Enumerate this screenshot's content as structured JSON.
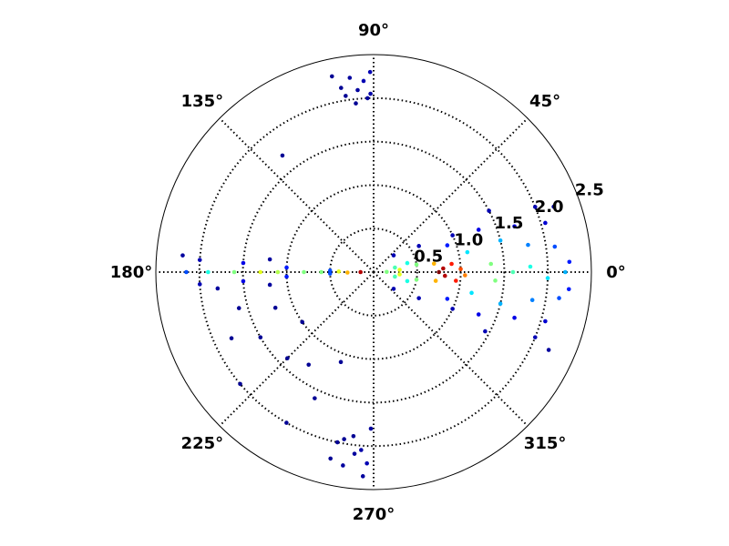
{
  "chart_data": {
    "type": "polar-scatter",
    "colormap": "jet",
    "rlim": [
      0,
      2.5
    ],
    "rticks": [
      0.5,
      {
        "value": 1,
        "label": "1.0"
      },
      1.5,
      {
        "value": 2,
        "label": "2.0"
      },
      2.5
    ],
    "thetaticks": [
      {
        "value": 0,
        "label": "0°"
      },
      {
        "value": 45,
        "label": "45°"
      },
      {
        "value": 90,
        "label": "90°"
      },
      {
        "value": 135,
        "label": "135°"
      },
      {
        "value": 180,
        "label": "180°"
      },
      {
        "value": 225,
        "label": "225°"
      },
      {
        "value": 270,
        "label": "270°"
      },
      {
        "value": 315,
        "label": "315°"
      }
    ],
    "grid": true,
    "theta": [
      30,
      -30,
      40,
      -40,
      25,
      -25,
      20,
      -20,
      22,
      -22,
      28,
      -28,
      18,
      -18,
      16,
      -16,
      22,
      -22,
      20,
      -24,
      15,
      -15,
      14,
      -14,
      12,
      -12,
      10,
      -10,
      8,
      -8,
      12,
      -12,
      10,
      -10,
      3,
      -5,
      0,
      2,
      -2,
      4,
      -4,
      0,
      5,
      -5,
      1,
      8,
      -8,
      6,
      -6,
      2,
      -2,
      3,
      -3,
      0,
      187,
      173,
      186,
      175,
      184,
      176,
      184,
      176,
      183,
      177,
      182,
      178,
      180,
      180,
      180,
      180,
      180,
      180,
      179,
      181,
      180,
      180,
      91,
      93,
      95,
      97,
      100,
      102,
      92,
      96,
      99,
      91,
      268,
      266,
      264,
      261,
      258,
      263,
      269,
      257,
      267,
      260,
      200,
      210,
      215,
      225,
      235,
      245,
      205,
      220,
      240,
      250,
      195,
      128
    ],
    "r": [
      0.6,
      0.6,
      0.3,
      0.3,
      1.0,
      1.0,
      0.9,
      0.9,
      1.3,
      1.3,
      1.5,
      1.45,
      1.7,
      1.7,
      2.05,
      2.05,
      2.0,
      2.0,
      2.2,
      2.2,
      0.4,
      0.4,
      1.5,
      1.5,
      1.1,
      1.15,
      1.8,
      1.85,
      2.1,
      2.15,
      0.25,
      0.25,
      0.5,
      0.5,
      2.25,
      2.25,
      2.2,
      1.8,
      2.0,
      1.35,
      1.4,
      1.6,
      0.3,
      0.3,
      0.15,
      0.7,
      0.72,
      0.9,
      0.95,
      1.0,
      1.05,
      0.8,
      0.82,
      0.75,
      1.2,
      1.2,
      1.8,
      2.2,
      2.0,
      2.0,
      1.5,
      1.5,
      1.0,
      1.0,
      0.5,
      0.5,
      2.15,
      1.9,
      1.6,
      0.8,
      0.6,
      1.1,
      0.4,
      0.3,
      1.3,
      0.15,
      2.3,
      2.2,
      2.1,
      2.25,
      2.15,
      2.3,
      2.0,
      1.95,
      2.05,
      2.05,
      2.2,
      2.05,
      2.1,
      2.25,
      2.0,
      1.9,
      1.8,
      2.2,
      2.35,
      1.95,
      1.2,
      1.5,
      1.0,
      1.4,
      1.3,
      1.6,
      1.8,
      2.0,
      2.0,
      1.1,
      1.6,
      1.7
    ],
    "c": [
      0.05,
      0.05,
      0.05,
      0.05,
      0.05,
      0.05,
      0.15,
      0.15,
      0.1,
      0.1,
      0.05,
      0.05,
      0.1,
      0.1,
      0.08,
      0.08,
      0.05,
      0.05,
      0.03,
      0.03,
      0.4,
      0.4,
      0.3,
      0.3,
      0.35,
      0.35,
      0.25,
      0.25,
      0.2,
      0.2,
      0.45,
      0.45,
      0.5,
      0.5,
      0.15,
      0.15,
      0.3,
      0.4,
      0.35,
      0.5,
      0.5,
      0.45,
      0.6,
      0.6,
      0.5,
      0.7,
      0.7,
      0.85,
      0.85,
      0.8,
      0.75,
      0.95,
      0.95,
      1,
      0.03,
      0.03,
      0.03,
      0.03,
      0.05,
      0.05,
      0.1,
      0.1,
      0.15,
      0.15,
      0.2,
      0.2,
      0.2,
      0.4,
      0.5,
      0.5,
      0.5,
      0.55,
      0.6,
      0.7,
      0.6,
      0.95,
      0.05,
      0.05,
      0.03,
      0.03,
      0.02,
      0.02,
      0.03,
      0.02,
      0.02,
      0.04,
      0.05,
      0.04,
      0.03,
      0.03,
      0.02,
      0.02,
      0.03,
      0.02,
      0.03,
      0.02,
      0.02,
      0.02,
      0.02,
      0.02,
      0.02,
      0.02,
      0.02,
      0.02,
      0.02,
      0.02,
      0.02,
      0.02
    ]
  }
}
